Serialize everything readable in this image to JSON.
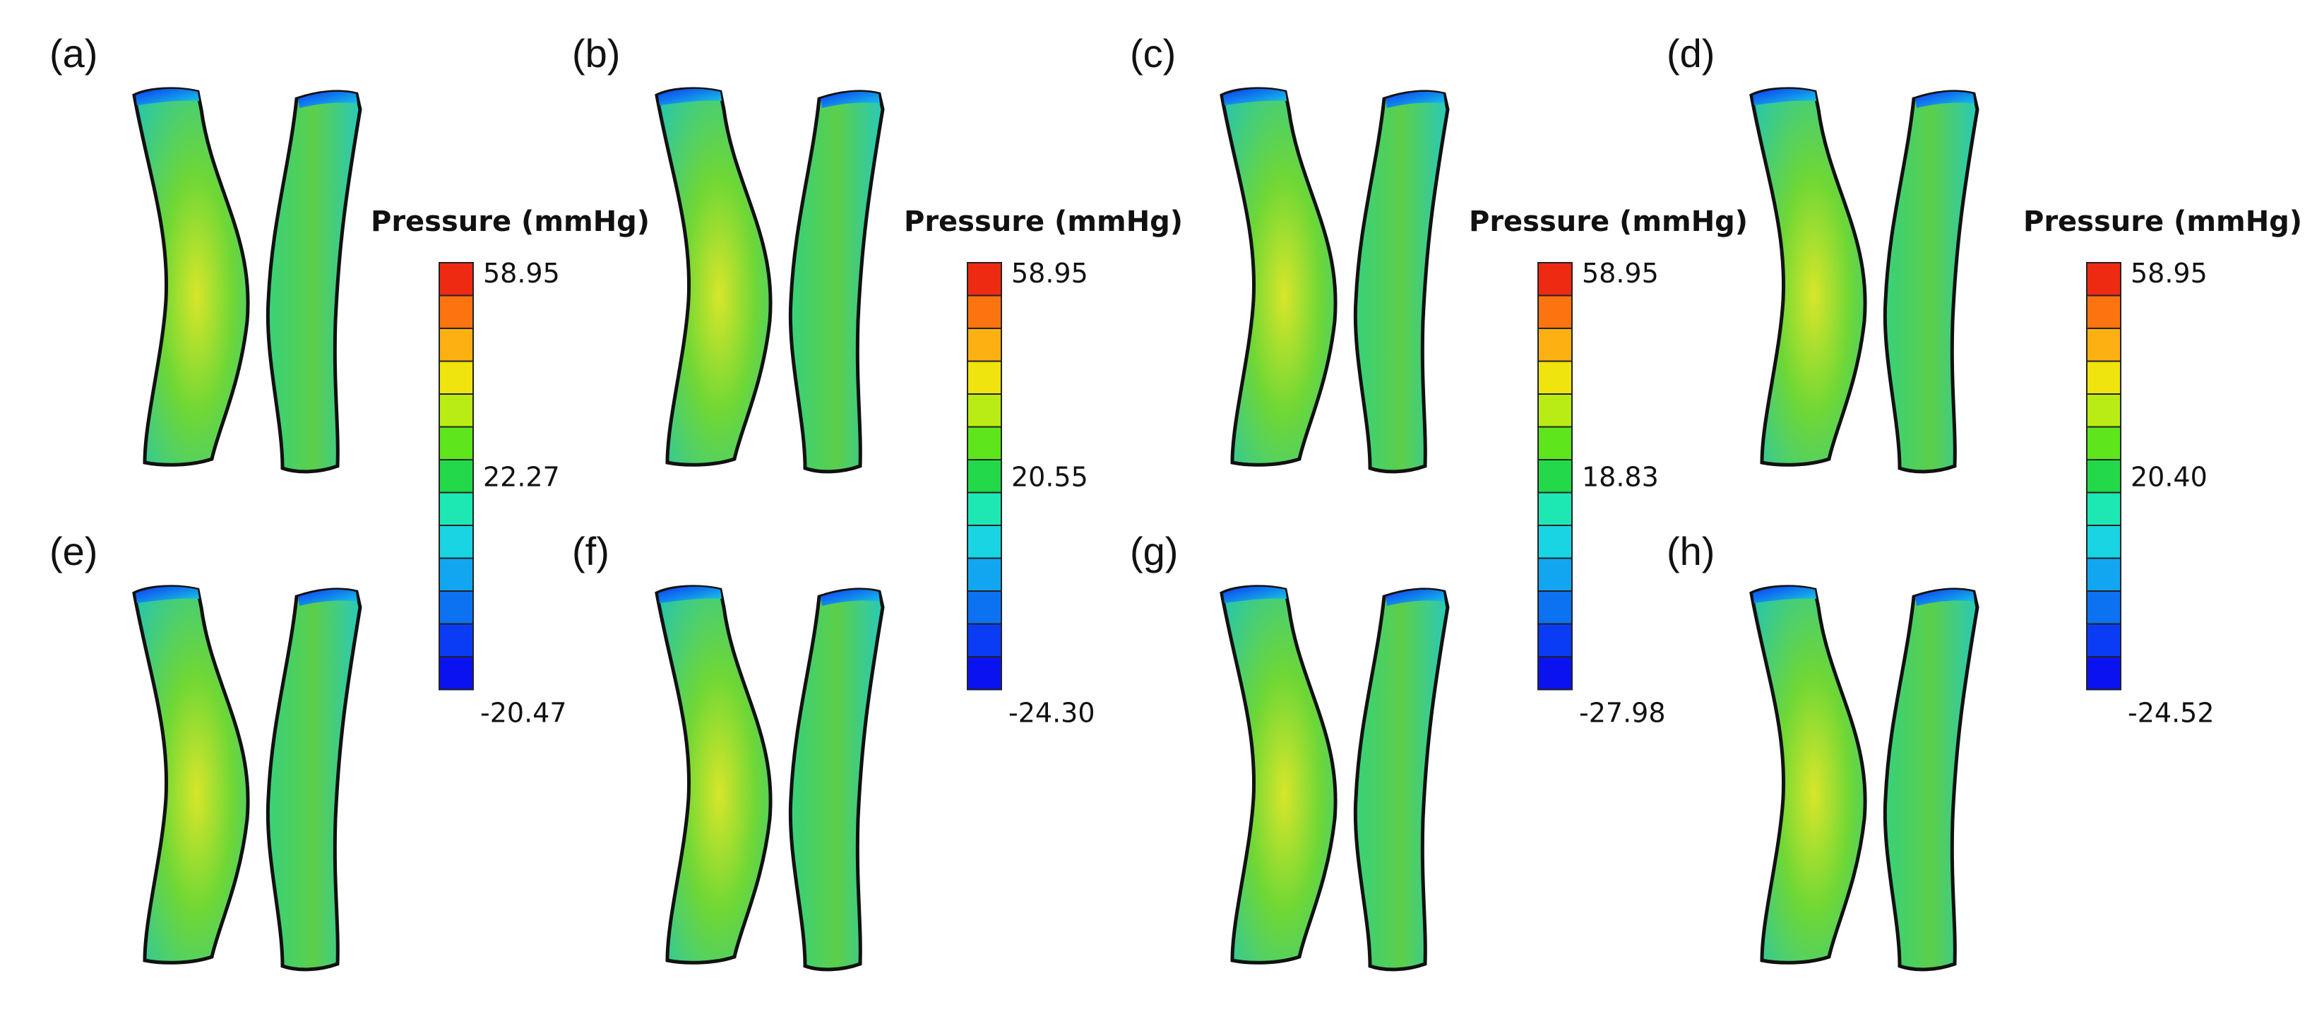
{
  "colors": {
    "scale": [
      "#0a12ef",
      "#0a3cf5",
      "#0c72f2",
      "#12a6f0",
      "#19d4e2",
      "#1de8b4",
      "#23d94a",
      "#5ee51c",
      "#b9ec14",
      "#f0e40e",
      "#fcb012",
      "#fb7410",
      "#ee2a12"
    ],
    "vessel_low": "#2ac7a8",
    "vessel_mid": "#4ecf38",
    "vessel_high": "#d9e52a",
    "outline": "#111111"
  },
  "panels": [
    {
      "label": "(a)"
    },
    {
      "label": "(b)"
    },
    {
      "label": "(c)"
    },
    {
      "label": "(d)"
    },
    {
      "label": "(e)"
    },
    {
      "label": "(f)"
    },
    {
      "label": "(g)"
    },
    {
      "label": "(h)"
    }
  ],
  "colorbars": [
    {
      "title": "Pressure (mmHg)",
      "max": "58.95",
      "mid": "22.27",
      "min": "-20.47"
    },
    {
      "title": "Pressure (mmHg)",
      "max": "58.95",
      "mid": "20.55",
      "min": "-24.30"
    },
    {
      "title": "Pressure (mmHg)",
      "max": "58.95",
      "mid": "18.83",
      "min": "-27.98"
    },
    {
      "title": "Pressure (mmHg)",
      "max": "58.95",
      "mid": "20.40",
      "min": "-24.52"
    }
  ]
}
